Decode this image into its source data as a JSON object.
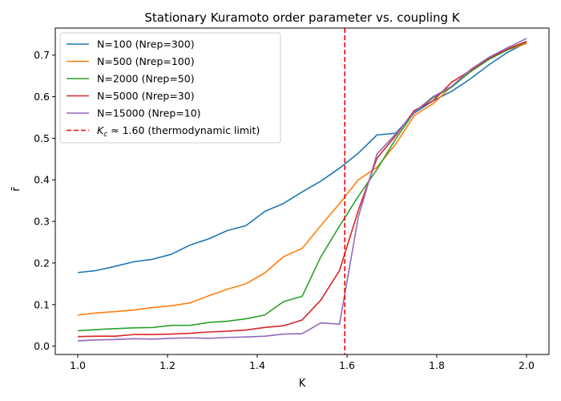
{
  "chart_data": {
    "type": "line",
    "title": "Stationary Kuramoto order parameter vs. coupling K",
    "xlabel": "K",
    "ylabel": "r̄",
    "xlim": [
      0.95,
      2.05
    ],
    "ylim": [
      -0.02,
      0.765
    ],
    "xticks": [
      1.0,
      1.2,
      1.4,
      1.6,
      1.8,
      2.0
    ],
    "xtick_labels": [
      "1.0",
      "1.2",
      "1.4",
      "1.6",
      "1.8",
      "2.0"
    ],
    "yticks": [
      0.0,
      0.1,
      0.2,
      0.3,
      0.4,
      0.5,
      0.6,
      0.7
    ],
    "ytick_labels": [
      "0.0",
      "0.1",
      "0.2",
      "0.3",
      "0.4",
      "0.5",
      "0.6",
      "0.7"
    ],
    "grid": false,
    "legend_position": "top-left",
    "x": [
      1.0,
      1.0417,
      1.0833,
      1.125,
      1.1667,
      1.2083,
      1.25,
      1.2917,
      1.3333,
      1.375,
      1.4167,
      1.4583,
      1.5,
      1.5417,
      1.5833,
      1.625,
      1.6667,
      1.7083,
      1.75,
      1.7917,
      1.8333,
      1.875,
      1.9167,
      1.9583,
      2.0
    ],
    "series": [
      {
        "name": "N=100 (Nrep=300)",
        "color": "#1f77b4",
        "values": [
          0.177,
          0.182,
          0.192,
          0.203,
          0.209,
          0.221,
          0.243,
          0.258,
          0.278,
          0.29,
          0.324,
          0.343,
          0.371,
          0.397,
          0.428,
          0.464,
          0.508,
          0.512,
          0.561,
          0.59,
          0.613,
          0.643,
          0.677,
          0.707,
          0.73
        ]
      },
      {
        "name": "N=500 (Nrep=100)",
        "color": "#ff7f0e",
        "values": [
          0.075,
          0.08,
          0.083,
          0.087,
          0.093,
          0.097,
          0.104,
          0.121,
          0.137,
          0.15,
          0.176,
          0.215,
          0.235,
          0.29,
          0.343,
          0.4,
          0.43,
          0.486,
          0.555,
          0.583,
          0.625,
          0.66,
          0.69,
          0.713,
          0.728
        ]
      },
      {
        "name": "N=2000 (Nrep=50)",
        "color": "#2ca02c",
        "values": [
          0.037,
          0.04,
          0.042,
          0.044,
          0.045,
          0.05,
          0.05,
          0.057,
          0.06,
          0.066,
          0.075,
          0.107,
          0.12,
          0.215,
          0.289,
          0.36,
          0.425,
          0.498,
          0.563,
          0.597,
          0.623,
          0.66,
          0.69,
          0.713,
          0.732
        ]
      },
      {
        "name": "N=5000 (Nrep=30)",
        "color": "#d62728",
        "values": [
          0.023,
          0.024,
          0.024,
          0.028,
          0.028,
          0.029,
          0.031,
          0.034,
          0.036,
          0.039,
          0.045,
          0.049,
          0.063,
          0.111,
          0.182,
          0.326,
          0.452,
          0.506,
          0.567,
          0.59,
          0.635,
          0.663,
          0.693,
          0.715,
          0.733
        ]
      },
      {
        "name": "N=15000 (Nrep=10)",
        "color": "#9467bd",
        "values": [
          0.013,
          0.015,
          0.016,
          0.018,
          0.017,
          0.019,
          0.02,
          0.019,
          0.021,
          0.022,
          0.024,
          0.029,
          0.03,
          0.056,
          0.053,
          0.31,
          0.462,
          0.51,
          0.563,
          0.6,
          0.625,
          0.665,
          0.695,
          0.718,
          0.74
        ]
      }
    ],
    "reference_line": {
      "x": 1.595,
      "label": "K_c ≈ 1.60 (thermodynamic limit)",
      "label_math_symbol": "K",
      "label_math_subscript": "c",
      "label_rest": " ≈ 1.60 (thermodynamic limit)",
      "color": "#ff0000",
      "style": "dashed"
    }
  }
}
